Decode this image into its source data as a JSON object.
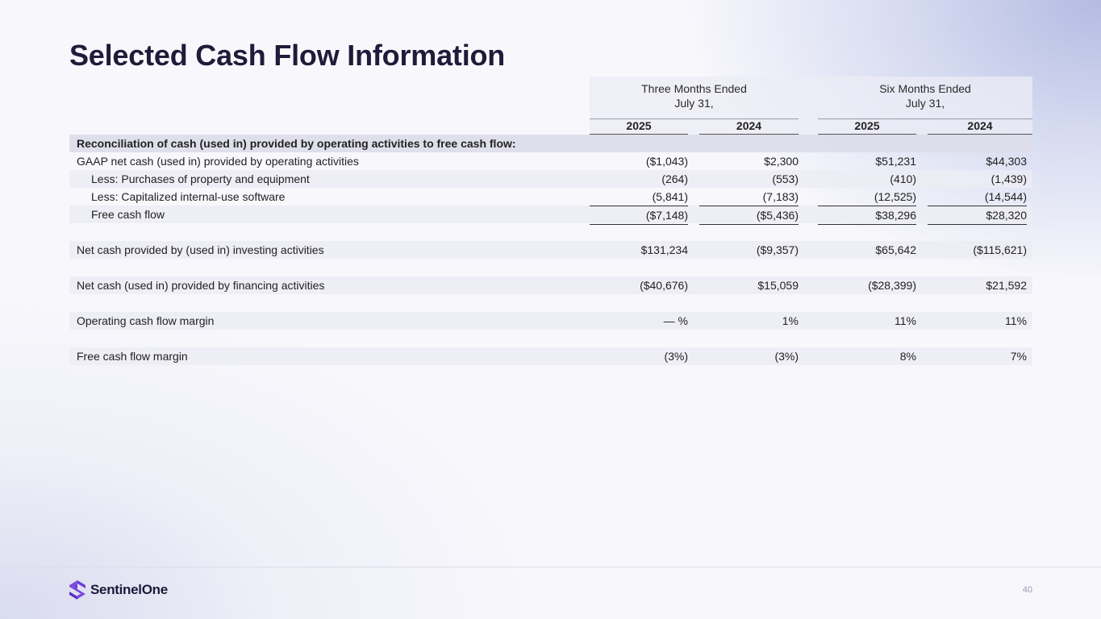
{
  "title": "Selected Cash Flow Information",
  "header": {
    "three_months": [
      "Three Months Ended",
      "July 31,"
    ],
    "six_months": [
      "Six Months Ended",
      "July 31,"
    ],
    "years": [
      "2025",
      "2024",
      "2025",
      "2024"
    ]
  },
  "rows": {
    "section": "Reconciliation of cash (used in) provided by operating activities to free cash flow:",
    "gaap": {
      "label": "GAAP net cash (used in) provided by operating activities",
      "values": [
        "($1,043)",
        "$2,300",
        "$51,231",
        "$44,303"
      ]
    },
    "ppe": {
      "label": "Less: Purchases of property and equipment",
      "values": [
        "(264)",
        "(553)",
        "(410)",
        "(1,439)"
      ]
    },
    "software": {
      "label": "Less: Capitalized internal-use software",
      "values": [
        "(5,841)",
        "(7,183)",
        "(12,525)",
        "(14,544)"
      ]
    },
    "fcf": {
      "label": "Free cash flow",
      "values": [
        "($7,148)",
        "($5,436)",
        "$38,296",
        "$28,320"
      ]
    },
    "investing": {
      "label": "Net cash provided by (used in) investing activities",
      "values": [
        "$131,234",
        "($9,357)",
        "$65,642",
        "($115,621)"
      ]
    },
    "financing": {
      "label": "Net cash (used in) provided by financing activities",
      "values": [
        "($40,676)",
        "$15,059",
        "($28,399)",
        "$21,592"
      ]
    },
    "ocf_margin": {
      "label": "Operating cash flow margin",
      "values": [
        "— %",
        "1%",
        "11%",
        "11%"
      ]
    },
    "fcf_margin": {
      "label": "Free cash flow margin",
      "values": [
        "(3%)",
        "(3%)",
        "8%",
        "7%"
      ]
    }
  },
  "footer": {
    "logo_text": "SentinelOne",
    "page_number": "40"
  },
  "colors": {
    "brand_purple": "#6b3fd4",
    "title": "#221a3a"
  }
}
